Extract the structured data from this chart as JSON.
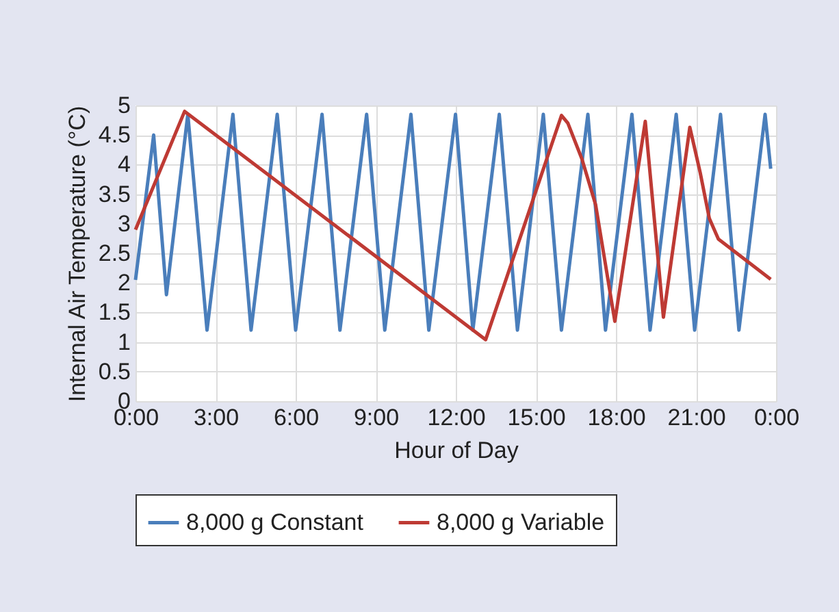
{
  "chart_data": {
    "type": "line",
    "xlabel": "Hour of Day",
    "ylabel": "Internal Air Temperature (°C)",
    "xlim": [
      0,
      24
    ],
    "xticks": [
      {
        "value": 0,
        "label": "0:00"
      },
      {
        "value": 3,
        "label": "3:00"
      },
      {
        "value": 6,
        "label": "6:00"
      },
      {
        "value": 9,
        "label": "9:00"
      },
      {
        "value": 12,
        "label": "12:00"
      },
      {
        "value": 15,
        "label": "15:00"
      },
      {
        "value": 18,
        "label": "18:00"
      },
      {
        "value": 21,
        "label": "21:00"
      },
      {
        "value": 24,
        "label": "0:00"
      }
    ],
    "ylim": [
      0,
      5
    ],
    "yticks": [
      0,
      0.5,
      1,
      1.5,
      2,
      2.5,
      3,
      3.5,
      4,
      4.5,
      5
    ],
    "grid": true,
    "legend": "bottom",
    "marker": "none",
    "line_style": "solid",
    "series": [
      {
        "name": "8,000 g Constant",
        "color": "#4a7ebb",
        "x": [
          0,
          0.68,
          1.16,
          1.96,
          2.68,
          3.65,
          4.33,
          5.31,
          6.0,
          6.99,
          7.66,
          8.66,
          9.34,
          10.32,
          10.99,
          11.99,
          12.64,
          13.63,
          14.31,
          15.28,
          15.96,
          16.95,
          17.61,
          18.6,
          19.28,
          20.26,
          20.95,
          21.92,
          22.61,
          23.59,
          23.8
        ],
        "values": [
          2.05,
          4.5,
          1.8,
          4.85,
          1.2,
          4.85,
          1.2,
          4.85,
          1.2,
          4.85,
          1.2,
          4.85,
          1.2,
          4.85,
          1.2,
          4.85,
          1.2,
          4.85,
          1.2,
          4.85,
          1.2,
          4.85,
          1.2,
          4.85,
          1.2,
          4.85,
          1.2,
          4.85,
          1.2,
          4.85,
          3.93
        ]
      },
      {
        "name": "8,000 g Variable",
        "color": "#be3a34",
        "x": [
          0,
          1.84,
          13.12,
          15.96,
          16.2,
          16.73,
          17.24,
          17.96,
          19.1,
          19.78,
          20.77,
          21.16,
          21.5,
          21.84,
          23.8
        ],
        "values": [
          2.9,
          4.9,
          1.04,
          4.83,
          4.7,
          4.09,
          3.32,
          1.35,
          4.73,
          1.42,
          4.63,
          3.86,
          3.09,
          2.74,
          2.06
        ]
      }
    ]
  }
}
